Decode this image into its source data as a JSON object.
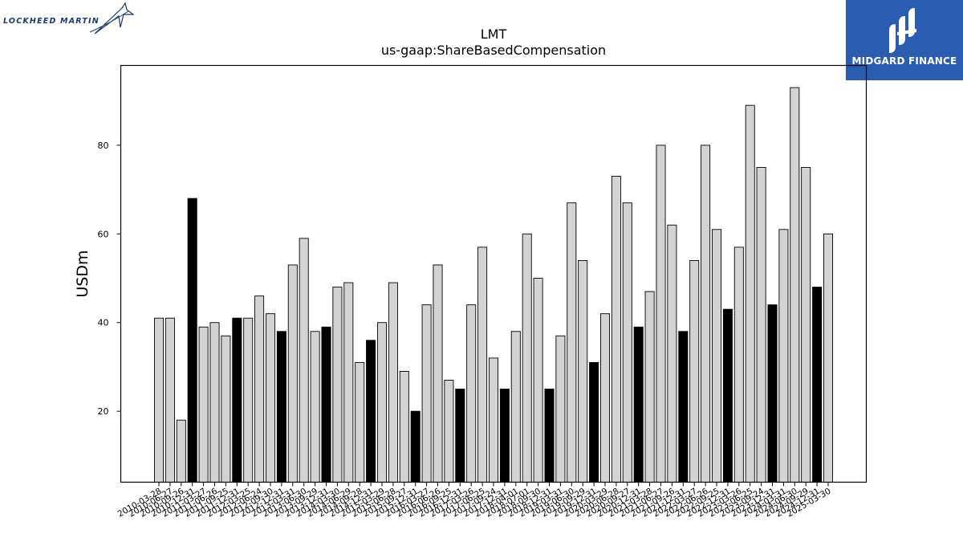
{
  "logos": {
    "left_text": "LOCKHEED MARTIN",
    "right_text": "MIDGARD FINANCE"
  },
  "chart_data": {
    "type": "bar",
    "title": "LMT",
    "subtitle": "us-gaap:ShareBasedCompensation",
    "xlabel": "",
    "ylabel": "USDm",
    "ylim": [
      4,
      98
    ],
    "yticks": [
      20,
      40,
      60,
      80
    ],
    "grid": false,
    "colors": {
      "quarter": "#d3d3d3",
      "annual": "#000000",
      "edge": "#000000"
    },
    "categories": [
      "2010-03-28",
      "2010-06-27",
      "2010-09-26",
      "2010-12-31",
      "2011-03-27",
      "2011-06-26",
      "2011-09-25",
      "2011-12-31",
      "2012-03-25",
      "2012-06-24",
      "2012-09-30",
      "2012-12-31",
      "2013-03-31",
      "2013-06-30",
      "2013-09-29",
      "2013-12-31",
      "2014-03-30",
      "2014-06-29",
      "2014-09-28",
      "2014-12-31",
      "2015-03-29",
      "2015-06-28",
      "2015-09-27",
      "2015-12-31",
      "2016-03-27",
      "2016-06-26",
      "2016-09-25",
      "2016-12-31",
      "2017-03-26",
      "2017-06-25",
      "2017-09-24",
      "2017-12-31",
      "2018-04-01",
      "2018-07-01",
      "2018-09-30",
      "2018-12-31",
      "2019-03-31",
      "2019-06-30",
      "2019-09-29",
      "2019-12-31",
      "2020-03-29",
      "2020-06-28",
      "2020-09-27",
      "2020-12-31",
      "2021-03-28",
      "2021-06-27",
      "2021-09-26",
      "2021-12-31",
      "2022-03-27",
      "2022-06-26",
      "2022-09-25",
      "2022-12-31",
      "2023-03-26",
      "2023-06-25",
      "2023-09-24",
      "2023-12-31",
      "2024-03-31",
      "2024-06-30",
      "2024-09-29",
      "2024-12-31",
      "2025-03-30"
    ],
    "xtick_labels": [
      "2010-03-28",
      "2010-06-27",
      "2010-09-26",
      "2010-12-31",
      "2011-03-27",
      "2011-06-26",
      "2011-09-25",
      "2011-12-31",
      "2012-03-25",
      "2012-06-24",
      "2012-09-30",
      "2012-12-31",
      "2013-03-31",
      "2013-06-30",
      "2013-09-29",
      "2013-12-31",
      "2014-03-30",
      "2014-06-29",
      "2014-09-28",
      "2014-12-31",
      "2015-03-29",
      "2015-06-28",
      "2015-09-27",
      "2015-12-31",
      "2016-03-27",
      "2016-06-26",
      "2016-09-25",
      "2016-12-31",
      "2017-03-26",
      "2017-06-25",
      "2017-09-24",
      "2017-12-31",
      "2018-04-01",
      "2018-07-01",
      "2018-09-30",
      "2018-12-31",
      "2019-03-31",
      "2019-06-30",
      "2019-09-29",
      "2019-12-31",
      "2020-03-29",
      "2020-06-28",
      "2020-09-27",
      "2020-12-31",
      "2021-03-28",
      "2021-06-27",
      "2021-09-26",
      "2021-12-31",
      "2022-03-27",
      "2022-06-26",
      "2022-09-25",
      "2022-12-31",
      "2023-03-26",
      "2023-06-25",
      "2023-09-24",
      "2023-12-31",
      "2024-03-31",
      "2024-06-30",
      "2024-09-29",
      "2024-12-31",
      "2025-03-30"
    ],
    "values": [
      41,
      41,
      18,
      68,
      39,
      40,
      37,
      41,
      41,
      46,
      42,
      38,
      53,
      59,
      38,
      39,
      48,
      49,
      31,
      36,
      40,
      49,
      29,
      20,
      44,
      53,
      27,
      25,
      44,
      57,
      32,
      25,
      38,
      60,
      50,
      25,
      37,
      67,
      54,
      31,
      42,
      73,
      67,
      39,
      47,
      80,
      62,
      38,
      54,
      80,
      61,
      43,
      57,
      89,
      75,
      44,
      61,
      93,
      75,
      48,
      60
    ],
    "annual": [
      false,
      false,
      false,
      true,
      false,
      false,
      false,
      true,
      false,
      false,
      false,
      true,
      false,
      false,
      false,
      true,
      false,
      false,
      false,
      true,
      false,
      false,
      false,
      true,
      false,
      false,
      false,
      true,
      false,
      false,
      false,
      true,
      false,
      false,
      false,
      true,
      false,
      false,
      false,
      true,
      false,
      false,
      false,
      true,
      false,
      false,
      false,
      true,
      false,
      false,
      false,
      true,
      false,
      false,
      false,
      true,
      false,
      false,
      false,
      true,
      false
    ]
  }
}
